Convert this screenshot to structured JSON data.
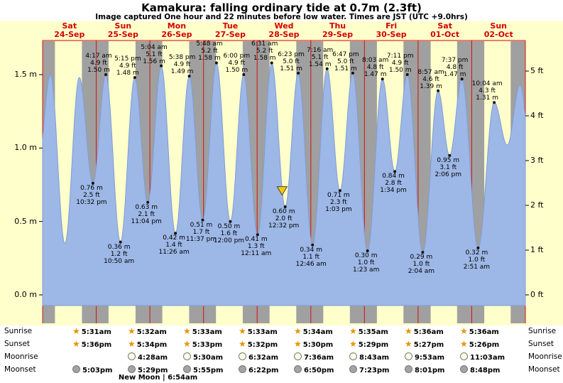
{
  "title": "Kamakura: falling  ordinary tide at 0.7m (2.3ft)",
  "subtitle": "Image captured One hour and 22 minutes before low water. Times are JST (UTC +9.0hrs)",
  "colors": {
    "background": "#ffffcc",
    "night_band": "#a0a0a0",
    "tide_fill": "#9db7e6",
    "tide_stroke": "#7f9cd8",
    "date_red": "#d40000",
    "grid_red": "#d40000",
    "star_gold": "#e59400",
    "marker_yellow": "#f7c800"
  },
  "days": [
    {
      "dow": "Sat",
      "date": "24-Sep"
    },
    {
      "dow": "Sun",
      "date": "25-Sep"
    },
    {
      "dow": "Mon",
      "date": "26-Sep"
    },
    {
      "dow": "Tue",
      "date": "27-Sep"
    },
    {
      "dow": "Wed",
      "date": "28-Sep"
    },
    {
      "dow": "Thu",
      "date": "29-Sep"
    },
    {
      "dow": "Fri",
      "date": "30-Sep"
    },
    {
      "dow": "Sat",
      "date": "01-Oct"
    },
    {
      "dow": "Sun",
      "date": "02-Oct"
    }
  ],
  "y_axis_left": [
    {
      "label": "1.5 m",
      "m": 1.5
    },
    {
      "label": "1.0 m",
      "m": 1.0
    },
    {
      "label": "0.5 m",
      "m": 0.5
    },
    {
      "label": "0.0 m",
      "m": 0.0
    }
  ],
  "y_axis_right": [
    {
      "label": "5 ft",
      "ft": 5
    },
    {
      "label": "4 ft",
      "ft": 4
    },
    {
      "label": "3 ft",
      "ft": 3
    },
    {
      "label": "2 ft",
      "ft": 2
    },
    {
      "label": "1 ft",
      "ft": 1
    },
    {
      "label": "0 ft",
      "ft": 0
    }
  ],
  "chart_data": {
    "type": "area",
    "title": "Kamakura tide height over 9 days",
    "x_start": "Sat 24-Sep 00:00 JST",
    "x_range_days": 9,
    "ylim_m": [
      -0.07,
      1.73
    ],
    "axis_left_unit": "m",
    "axis_right_unit": "ft",
    "tide_events": [
      {
        "t": -2.2,
        "m": 0.85,
        "labeled": false
      },
      {
        "t": 3.5,
        "m": 1.5,
        "labeled": false
      },
      {
        "t": 9.97,
        "m": 0.35,
        "labeled": false
      },
      {
        "t": 16.42,
        "m": 1.48,
        "labeled": false
      },
      {
        "t": 22.53,
        "type": "low",
        "time": "10:32 pm",
        "m": 0.76,
        "ft": 2.5,
        "day": "Sat 24-Sep",
        "labeled": true
      },
      {
        "t": 28.28,
        "type": "high",
        "time": "4:17 am",
        "m": 1.5,
        "ft": 4.9,
        "day": "Sun 25-Sep",
        "labeled": true
      },
      {
        "t": 34.83,
        "type": "low",
        "time": "10:50 am",
        "m": 0.36,
        "ft": 1.2,
        "day": "Sun 25-Sep",
        "labeled": true
      },
      {
        "t": 41.25,
        "type": "high",
        "time": "5:15 pm",
        "m": 1.48,
        "ft": 4.9,
        "day": "Sun 25-Sep",
        "labeled": true
      },
      {
        "t": 47.07,
        "type": "low",
        "time": "11:04 pm",
        "m": 0.63,
        "ft": 2.1,
        "day": "Sun 25-Sep",
        "labeled": true
      },
      {
        "t": 53.07,
        "type": "high",
        "time": "5:04 am",
        "m": 1.56,
        "ft": 5.1,
        "day": "Mon 26-Sep",
        "labeled": true
      },
      {
        "t": 59.43,
        "type": "low",
        "time": "11:26 am",
        "m": 0.42,
        "ft": 1.4,
        "day": "Mon 26-Sep",
        "labeled": true
      },
      {
        "t": 65.63,
        "type": "high",
        "time": "5:38 pm",
        "m": 1.49,
        "ft": 4.9,
        "day": "Mon 26-Sep",
        "labeled": true
      },
      {
        "t": 71.62,
        "type": "low",
        "time": "11:37 pm",
        "m": 0.51,
        "ft": 1.7,
        "day": "Mon 26-Sep",
        "labeled": true
      },
      {
        "t": 77.8,
        "type": "high",
        "time": "5:48 am",
        "m": 1.58,
        "ft": 5.2,
        "day": "Tue 27-Sep",
        "labeled": true
      },
      {
        "t": 84.0,
        "type": "low",
        "time": "12:00 pm",
        "m": 0.5,
        "ft": 1.6,
        "day": "Tue 27-Sep",
        "labeled": true
      },
      {
        "t": 90.0,
        "type": "high",
        "time": "6:00 pm",
        "m": 1.5,
        "ft": 4.9,
        "day": "Tue 27-Sep",
        "labeled": true
      },
      {
        "t": 96.18,
        "type": "low",
        "time": "12:11 am",
        "m": 0.41,
        "ft": 1.3,
        "day": "Wed 28-Sep",
        "labeled": true
      },
      {
        "t": 102.52,
        "type": "high",
        "time": "6:31 am",
        "m": 1.58,
        "ft": 5.2,
        "day": "Wed 28-Sep",
        "labeled": true
      },
      {
        "t": 108.53,
        "type": "low",
        "time": "12:32 pm",
        "m": 0.6,
        "ft": 2.0,
        "day": "Wed 28-Sep",
        "labeled": true
      },
      {
        "t": 114.38,
        "type": "high",
        "time": "6:23 pm",
        "m": 1.51,
        "ft": 5.0,
        "day": "Wed 28-Sep",
        "labeled": true
      },
      {
        "t": 120.77,
        "type": "low",
        "time": "12:46 am",
        "m": 0.34,
        "ft": 1.1,
        "day": "Thu 29-Sep",
        "labeled": true
      },
      {
        "t": 127.27,
        "type": "high",
        "time": "7:16 am",
        "m": 1.54,
        "ft": 5.1,
        "day": "Thu 29-Sep",
        "labeled": true
      },
      {
        "t": 133.05,
        "type": "low",
        "time": "1:03 pm",
        "m": 0.71,
        "ft": 2.3,
        "day": "Thu 29-Sep",
        "labeled": true
      },
      {
        "t": 138.78,
        "type": "high",
        "time": "6:47 pm",
        "m": 1.51,
        "ft": 5.0,
        "day": "Thu 29-Sep",
        "labeled": true
      },
      {
        "t": 145.38,
        "type": "low",
        "time": "1:23 am",
        "m": 0.3,
        "ft": 1.0,
        "day": "Fri 30-Sep",
        "labeled": true
      },
      {
        "t": 152.05,
        "type": "high",
        "time": "8:03 am",
        "m": 1.47,
        "ft": 4.8,
        "day": "Fri 30-Sep",
        "labeled": true
      },
      {
        "t": 157.57,
        "type": "low",
        "time": "1:34 pm",
        "m": 0.84,
        "ft": 2.8,
        "day": "Fri 30-Sep",
        "labeled": true
      },
      {
        "t": 163.18,
        "type": "high",
        "time": "7:11 pm",
        "m": 1.5,
        "ft": 4.9,
        "day": "Fri 30-Sep",
        "labeled": true
      },
      {
        "t": 170.07,
        "type": "low",
        "time": "2:04 am",
        "m": 0.29,
        "ft": 1.0,
        "day": "Sat 01-Oct",
        "labeled": true
      },
      {
        "t": 176.95,
        "type": "high",
        "time": "8:57 am",
        "m": 1.39,
        "ft": 4.6,
        "day": "Sat 01-Oct",
        "labeled": true
      },
      {
        "t": 182.1,
        "type": "low",
        "time": "2:06 pm",
        "m": 0.95,
        "ft": 3.1,
        "day": "Sat 01-Oct",
        "labeled": true
      },
      {
        "t": 187.62,
        "type": "high",
        "time": "7:37 pm",
        "m": 1.47,
        "ft": 4.8,
        "day": "Sat 01-Oct",
        "labeled": true
      },
      {
        "t": 194.85,
        "type": "low",
        "time": "2:51 am",
        "m": 0.32,
        "ft": 1.0,
        "day": "Sun 02-Oct",
        "labeled": true
      },
      {
        "t": 202.07,
        "type": "high",
        "time": "10:04 am",
        "m": 1.31,
        "ft": 4.3,
        "day": "Sun 02-Oct",
        "labeled": true
      },
      {
        "t": 207.9,
        "m": 1.02,
        "labeled": false
      },
      {
        "t": 213.6,
        "m": 1.43,
        "labeled": false
      },
      {
        "t": 219.0,
        "m": 0.9,
        "labeled": false
      }
    ],
    "now_marker": {
      "t": 107.17,
      "m": 0.713
    }
  },
  "almanac": {
    "rows": [
      {
        "id": "sunrise",
        "label": "Sunrise",
        "icon": "star",
        "start_col": 0,
        "times": [
          "5:31am",
          "5:32am",
          "5:33am",
          "5:33am",
          "5:34am",
          "5:35am",
          "5:36am",
          "5:36am"
        ]
      },
      {
        "id": "sunset",
        "label": "Sunset",
        "icon": "star",
        "start_col": 0,
        "times": [
          "5:36pm",
          "5:34pm",
          "5:33pm",
          "5:32pm",
          "5:30pm",
          "5:29pm",
          "5:27pm",
          "5:26pm"
        ]
      },
      {
        "id": "moonrise",
        "label": "Moonrise",
        "icon": "moon-open",
        "start_col": 1,
        "times": [
          "4:28am",
          "5:30am",
          "6:32am",
          "7:36am",
          "8:43am",
          "9:53am",
          "11:03am"
        ]
      },
      {
        "id": "moonset",
        "label": "Moonset",
        "icon": "moon-full",
        "start_col": 0,
        "times": [
          "5:03pm",
          "5:29pm",
          "5:55pm",
          "6:22pm",
          "6:50pm",
          "7:23pm",
          "8:01pm",
          "8:48pm"
        ]
      }
    ],
    "note": "New Moon | 6:54am"
  }
}
